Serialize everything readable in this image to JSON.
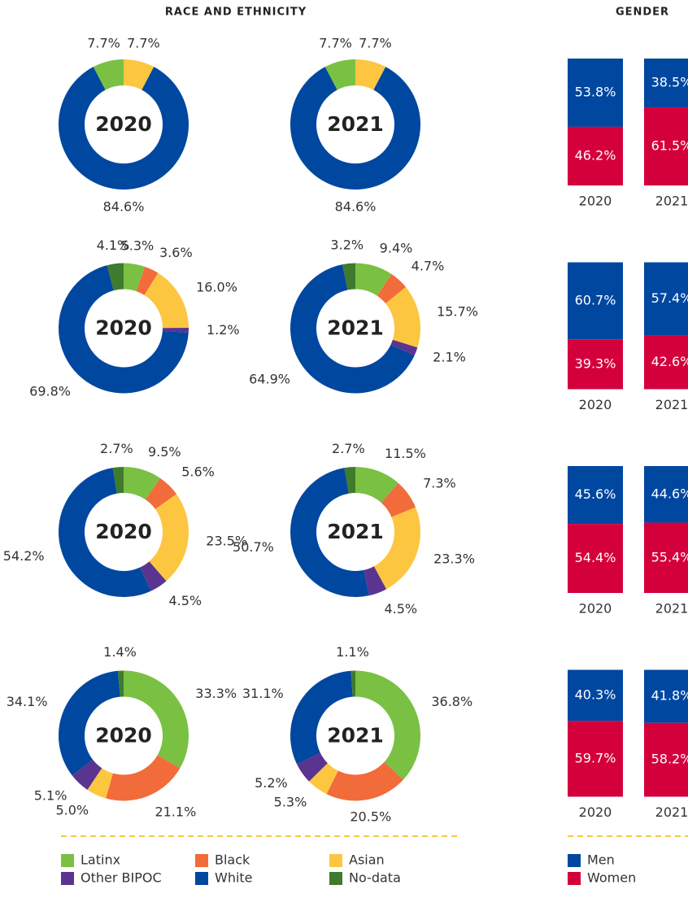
{
  "headers": {
    "race": "RACE AND ETHNICITY",
    "gender": "GENDER"
  },
  "legend": [
    {
      "name": "Latinx",
      "color": "#7ac143"
    },
    {
      "name": "Black",
      "color": "#f26b3a"
    },
    {
      "name": "Asian",
      "color": "#fdc640"
    },
    {
      "name": "Other BIPOC",
      "color": "#5b3490"
    },
    {
      "name": "White",
      "color": "#0047a0"
    },
    {
      "name": "No-data",
      "color": "#3f7a2e"
    }
  ],
  "chart_data": [
    {
      "type": "pie",
      "title": "2020",
      "categories": [
        "Asian",
        "White",
        "Latinx"
      ],
      "values": [
        7.7,
        84.6,
        7.7
      ],
      "value_labels": [
        "7.7%",
        "84.6%",
        "7.7%"
      ]
    },
    {
      "type": "pie",
      "title": "2021",
      "categories": [
        "Asian",
        "White",
        "Latinx"
      ],
      "values": [
        7.7,
        84.6,
        7.7
      ],
      "value_labels": [
        "7.7%",
        "84.6%",
        "7.7%"
      ]
    },
    {
      "type": "pie",
      "title": "2020",
      "categories": [
        "Latinx",
        "Black",
        "Asian",
        "Other BIPOC",
        "White",
        "No-data"
      ],
      "values": [
        5.3,
        3.6,
        16.0,
        1.2,
        69.8,
        4.1
      ],
      "value_labels": [
        "5.3%",
        "3.6%",
        "16.0%",
        "1.2%",
        "69.8%",
        "4.1%"
      ]
    },
    {
      "type": "pie",
      "title": "2021",
      "categories": [
        "Latinx",
        "Black",
        "Asian",
        "Other BIPOC",
        "White",
        "No-data"
      ],
      "values": [
        9.4,
        4.7,
        15.7,
        2.1,
        64.9,
        3.2
      ],
      "value_labels": [
        "9.4%",
        "4.7%",
        "15.7%",
        "2.1%",
        "64.9%",
        "3.2%"
      ]
    },
    {
      "type": "pie",
      "title": "2020",
      "categories": [
        "Latinx",
        "Black",
        "Asian",
        "Other BIPOC",
        "White",
        "No-data"
      ],
      "values": [
        9.5,
        5.6,
        23.5,
        4.5,
        54.2,
        2.7
      ],
      "value_labels": [
        "9.5%",
        "5.6%",
        "23.5%",
        "4.5%",
        "54.2%",
        "2.7%"
      ]
    },
    {
      "type": "pie",
      "title": "2021",
      "categories": [
        "Latinx",
        "Black",
        "Asian",
        "Other BIPOC",
        "White",
        "No-data"
      ],
      "values": [
        11.5,
        7.3,
        23.3,
        4.5,
        50.7,
        2.7
      ],
      "value_labels": [
        "11.5%",
        "7.3%",
        "23.3%",
        "4.5%",
        "50.7%",
        "2.7%"
      ]
    },
    {
      "type": "pie",
      "title": "2020",
      "categories": [
        "Latinx",
        "Black",
        "Asian",
        "Other BIPOC",
        "White",
        "No-data"
      ],
      "values": [
        33.3,
        21.1,
        5.0,
        5.1,
        34.1,
        1.4
      ],
      "value_labels": [
        "33.3%",
        "21.1%",
        "5.0%",
        "5.1%",
        "34.1%",
        "1.4%"
      ]
    },
    {
      "type": "pie",
      "title": "2021",
      "categories": [
        "Latinx",
        "Black",
        "Asian",
        "Other BIPOC",
        "White",
        "No-data"
      ],
      "values": [
        36.8,
        20.5,
        5.3,
        5.2,
        31.1,
        1.1
      ],
      "value_labels": [
        "36.8%",
        "20.5%",
        "5.3%",
        "5.2%",
        "31.1%",
        "1.1%"
      ]
    },
    {
      "type": "bar",
      "stacked": true,
      "categories": [
        "2020",
        "2021"
      ],
      "series": [
        {
          "name": "Men",
          "color": "#0047a0",
          "values": [
            53.8,
            38.5
          ],
          "value_labels": [
            "53.8%",
            "38.5%"
          ]
        },
        {
          "name": "Women",
          "color": "#d4003c",
          "values": [
            46.2,
            61.5
          ],
          "value_labels": [
            "46.2%",
            "61.5%"
          ]
        }
      ]
    },
    {
      "type": "bar",
      "stacked": true,
      "categories": [
        "2020",
        "2021"
      ],
      "series": [
        {
          "name": "Men",
          "color": "#0047a0",
          "values": [
            60.7,
            57.4
          ],
          "value_labels": [
            "60.7%",
            "57.4%"
          ]
        },
        {
          "name": "Women",
          "color": "#d4003c",
          "values": [
            39.3,
            42.6
          ],
          "value_labels": [
            "39.3%",
            "42.6%"
          ]
        }
      ]
    },
    {
      "type": "bar",
      "stacked": true,
      "categories": [
        "2020",
        "2021"
      ],
      "series": [
        {
          "name": "Men",
          "color": "#0047a0",
          "values": [
            45.6,
            44.6
          ],
          "value_labels": [
            "45.6%",
            "44.6%"
          ]
        },
        {
          "name": "Women",
          "color": "#d4003c",
          "values": [
            54.4,
            55.4
          ],
          "value_labels": [
            "54.4%",
            "55.4%"
          ]
        }
      ]
    },
    {
      "type": "bar",
      "stacked": true,
      "categories": [
        "2020",
        "2021"
      ],
      "series": [
        {
          "name": "Men",
          "color": "#0047a0",
          "values": [
            40.3,
            41.8
          ],
          "value_labels": [
            "40.3%",
            "41.8%"
          ]
        },
        {
          "name": "Women",
          "color": "#d4003c",
          "values": [
            59.7,
            58.2
          ],
          "value_labels": [
            "59.7%",
            "58.2%"
          ]
        }
      ]
    }
  ]
}
